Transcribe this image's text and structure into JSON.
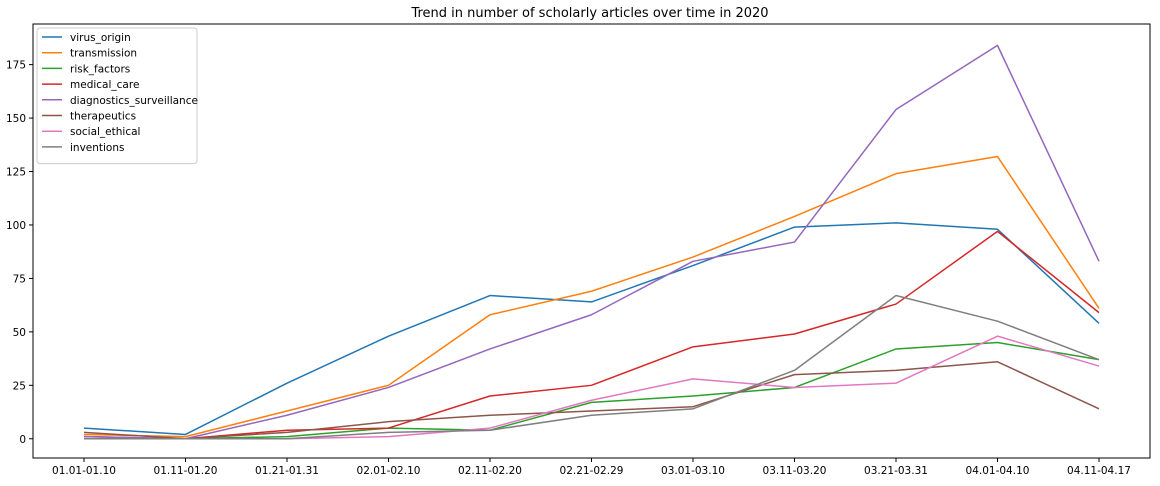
{
  "chart_data": {
    "type": "line",
    "title": "Trend in number of scholarly articles over time in 2020",
    "xlabel": "",
    "ylabel": "",
    "categories": [
      "01.01-01.10",
      "01.11-01.20",
      "01.21-01.31",
      "02.01-02.10",
      "02.11-02.20",
      "02.21-02.29",
      "03.01-03.10",
      "03.11-03.20",
      "03.21-03.31",
      "04.01-04.10",
      "04.11-04.17"
    ],
    "ylim": [
      -9,
      194
    ],
    "yticks": [
      0,
      25,
      50,
      75,
      100,
      125,
      150,
      175
    ],
    "grid": false,
    "legend": "top-left",
    "series": [
      {
        "name": "virus_origin",
        "color": "#1f77b4",
        "values": [
          5,
          2,
          26,
          48,
          67,
          64,
          81,
          99,
          101,
          98,
          54
        ]
      },
      {
        "name": "transmission",
        "color": "#ff7f0e",
        "values": [
          2,
          1,
          13,
          25,
          58,
          69,
          85,
          104,
          124,
          132,
          61
        ]
      },
      {
        "name": "risk_factors",
        "color": "#2ca02c",
        "values": [
          0,
          0,
          1,
          5,
          4,
          17,
          20,
          24,
          42,
          45,
          37
        ]
      },
      {
        "name": "medical_care",
        "color": "#d62728",
        "values": [
          1,
          0,
          4,
          5,
          20,
          25,
          43,
          49,
          63,
          97,
          59
        ]
      },
      {
        "name": "diagnostics_surveillance",
        "color": "#9467bd",
        "values": [
          1,
          0,
          11,
          24,
          42,
          58,
          83,
          92,
          154,
          184,
          83
        ]
      },
      {
        "name": "therapeutics",
        "color": "#8c564b",
        "values": [
          3,
          0,
          3,
          8,
          11,
          13,
          15,
          30,
          32,
          36,
          14
        ]
      },
      {
        "name": "social_ethical",
        "color": "#e377c2",
        "values": [
          0,
          0,
          0,
          1,
          5,
          18,
          28,
          24,
          26,
          48,
          34
        ]
      },
      {
        "name": "inventions",
        "color": "#7f7f7f",
        "values": [
          0,
          0,
          0,
          3,
          4,
          11,
          14,
          32,
          67,
          55,
          37
        ]
      }
    ]
  }
}
